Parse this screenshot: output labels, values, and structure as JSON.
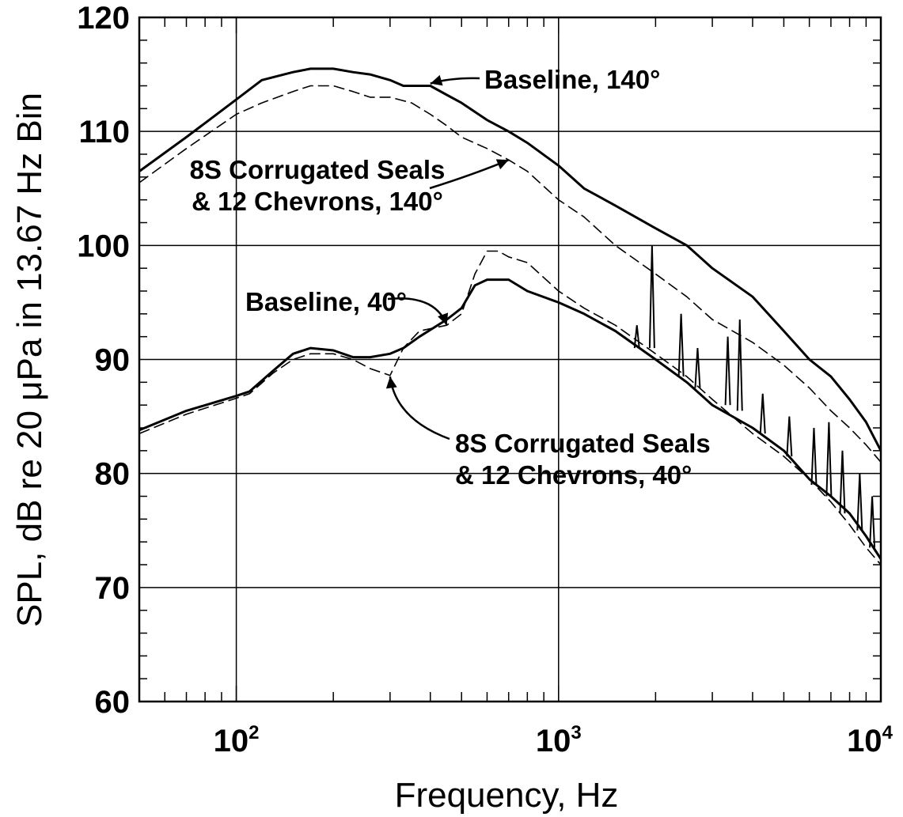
{
  "chart_data": {
    "type": "line",
    "xlabel": "Frequency, Hz",
    "ylabel": "SPL, dB re 20 μPa in 13.67 Hz Bin",
    "x_scale": "log",
    "xlim": [
      50,
      10000
    ],
    "ylim": [
      60,
      120
    ],
    "grid": true,
    "x_tick_labels": [
      {
        "base": "10",
        "exp": "2",
        "value": 100
      },
      {
        "base": "10",
        "exp": "3",
        "value": 1000
      },
      {
        "base": "10",
        "exp": "4",
        "value": 10000
      }
    ],
    "y_ticks": [
      60,
      70,
      80,
      90,
      100,
      110,
      120
    ],
    "series": [
      {
        "name": "Baseline, 140°",
        "style": "solid-thick",
        "x": [
          50,
          70,
          100,
          120,
          150,
          170,
          200,
          230,
          260,
          300,
          330,
          360,
          400,
          450,
          500,
          600,
          700,
          800,
          1000,
          1200,
          1500,
          2000,
          2500,
          3000,
          4000,
          5000,
          6000,
          7000,
          8000,
          9000,
          10000
        ],
        "y": [
          106.5,
          109.5,
          112.8,
          114.5,
          115.2,
          115.5,
          115.5,
          115.2,
          115.0,
          114.5,
          114.0,
          114.0,
          114.0,
          113.2,
          112.5,
          111.0,
          110.0,
          109.0,
          107.0,
          105.0,
          103.5,
          101.5,
          100.0,
          98.0,
          95.5,
          92.5,
          90.0,
          88.5,
          86.5,
          84.5,
          82.0
        ]
      },
      {
        "name": "8S Corrugated Seals & 12 Chevrons, 140°",
        "style": "dashed",
        "x": [
          50,
          70,
          100,
          120,
          150,
          170,
          200,
          230,
          260,
          300,
          350,
          400,
          450,
          500,
          600,
          700,
          800,
          1000,
          1200,
          1500,
          2000,
          2500,
          3000,
          4000,
          5000,
          6000,
          7000,
          8000,
          9000,
          10000
        ],
        "y": [
          105.5,
          108.5,
          111.5,
          112.5,
          113.5,
          114.0,
          114.0,
          113.5,
          113.0,
          113.0,
          112.5,
          111.5,
          110.5,
          109.5,
          108.5,
          107.5,
          106.5,
          104.0,
          102.5,
          100.0,
          97.5,
          95.5,
          93.5,
          91.5,
          89.5,
          87.5,
          85.5,
          84.0,
          82.5,
          81.0
        ]
      },
      {
        "name": "Baseline, 40°",
        "style": "solid-thick",
        "x": [
          50,
          70,
          100,
          110,
          130,
          150,
          170,
          200,
          230,
          260,
          300,
          330,
          370,
          450,
          500,
          550,
          600,
          700,
          800,
          1000,
          1200,
          1500,
          2000,
          2500,
          3000,
          4000,
          5000,
          6000,
          7000,
          8000,
          9000,
          10000
        ],
        "y": [
          83.8,
          85.5,
          86.8,
          87.2,
          89.0,
          90.5,
          91.0,
          90.8,
          90.2,
          90.2,
          90.5,
          91.0,
          92.0,
          93.5,
          94.5,
          96.5,
          97.0,
          97.0,
          96.0,
          95.0,
          94.0,
          92.5,
          90.0,
          88.0,
          86.0,
          84.0,
          82.0,
          79.5,
          78.0,
          76.5,
          74.5,
          72.5
        ]
      },
      {
        "name": "8S Corrugated Seals & 12 Chevrons, 40°",
        "style": "dashed",
        "x": [
          50,
          70,
          100,
          110,
          130,
          150,
          170,
          200,
          230,
          260,
          300,
          330,
          370,
          450,
          500,
          550,
          600,
          650,
          700,
          800,
          1000,
          1200,
          1500,
          2000,
          2500,
          3000,
          4000,
          5000,
          6000,
          7000,
          8000,
          9000,
          10000
        ],
        "y": [
          83.5,
          85.2,
          86.6,
          87.0,
          88.8,
          90.0,
          90.5,
          90.5,
          90.0,
          89.2,
          88.6,
          91.0,
          92.5,
          93.0,
          94.0,
          97.5,
          99.5,
          99.5,
          99.0,
          98.5,
          96.0,
          94.5,
          93.0,
          90.5,
          88.5,
          86.5,
          83.5,
          81.5,
          79.5,
          77.5,
          75.5,
          73.5,
          72.0
        ]
      }
    ],
    "spikes": [
      {
        "x": 1950,
        "y_top": 100.0,
        "y_base": 91.0
      },
      {
        "x": 2400,
        "y_top": 94.0,
        "y_base": 88.5
      },
      {
        "x": 3350,
        "y_top": 92.0,
        "y_base": 86.0
      },
      {
        "x": 3650,
        "y_top": 93.5,
        "y_base": 85.5
      },
      {
        "x": 1750,
        "y_top": 93.0,
        "y_base": 91.0
      },
      {
        "x": 2700,
        "y_top": 91.0,
        "y_base": 87.5
      },
      {
        "x": 4300,
        "y_top": 87.0,
        "y_base": 83.5
      },
      {
        "x": 5200,
        "y_top": 85.0,
        "y_base": 81.5
      },
      {
        "x": 6200,
        "y_top": 84.0,
        "y_base": 79.0
      },
      {
        "x": 6900,
        "y_top": 84.5,
        "y_base": 78.0
      },
      {
        "x": 7600,
        "y_top": 82.0,
        "y_base": 76.5
      },
      {
        "x": 8600,
        "y_top": 80.0,
        "y_base": 75.0
      },
      {
        "x": 9400,
        "y_top": 78.0,
        "y_base": 73.5
      }
    ],
    "annotations": [
      {
        "lines": [
          "Baseline, 140°"
        ],
        "target": [
          400,
          114.2
        ]
      },
      {
        "lines": [
          "8S Corrugated Seals",
          "& 12 Chevrons, 140°"
        ],
        "target": [
          700,
          107.5
        ]
      },
      {
        "lines": [
          "Baseline, 40°"
        ],
        "target": [
          450,
          93.0
        ]
      },
      {
        "lines": [
          "8S Corrugated Seals",
          "& 12 Chevrons, 40°"
        ],
        "target": [
          300,
          88.5
        ]
      }
    ]
  }
}
